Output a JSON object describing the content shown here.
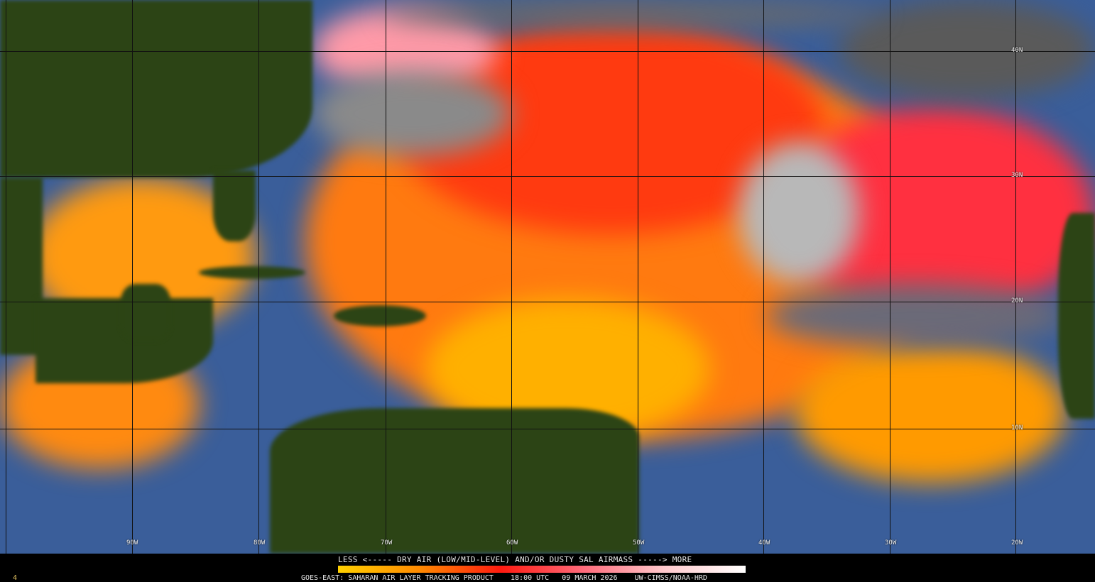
{
  "product": {
    "legend_title": "LESS <----- DRY AIR (LOW/MID-LEVEL) AND/OR DUSTY SAL AIRMASS -----> MORE",
    "footer": "GOES-EAST: SAHARAN AIR LAYER TRACKING PRODUCT    18:00 UTC   09 MARCH 2026    UW-CIMSS/NOAA-HRD",
    "frame_number": "4",
    "colorbar_colors": [
      "#ffd000",
      "#ff8a00",
      "#ff1a10",
      "#ff6a7a",
      "#ffc8cc",
      "#ffffff"
    ]
  },
  "grid": {
    "latitude_labels": [
      "40N",
      "30N",
      "20N",
      "10N"
    ],
    "longitude_labels": [
      "90W",
      "80W",
      "70W",
      "60W",
      "50W",
      "40W",
      "30W",
      "20W"
    ]
  }
}
